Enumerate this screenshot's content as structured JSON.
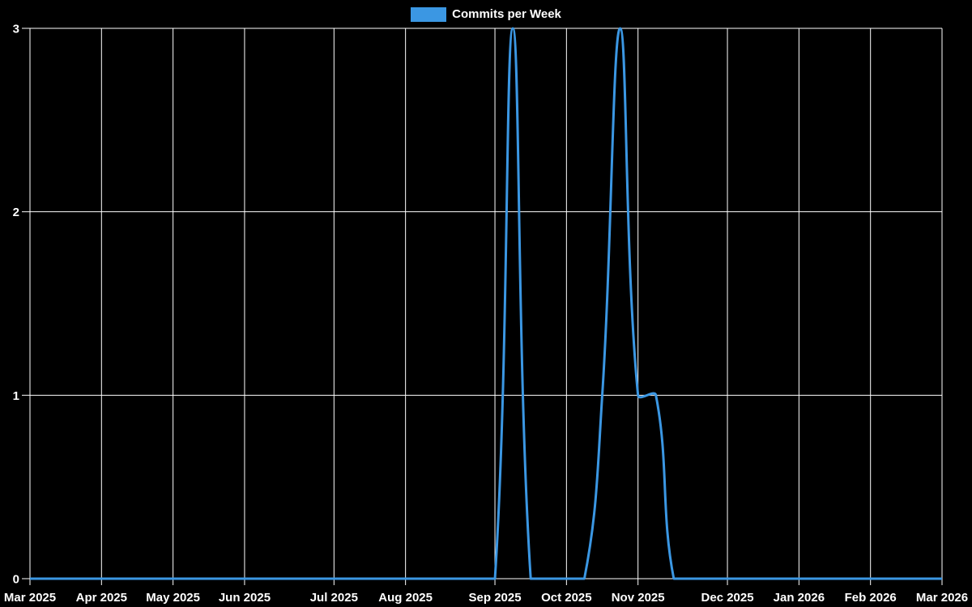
{
  "legend": {
    "label": "Commits per Week",
    "position": "top-center"
  },
  "colors": {
    "background": "#000000",
    "line": "#3b97e3",
    "grid": "#ffffff",
    "text": "#ffffff"
  },
  "chart_data": {
    "type": "line",
    "title": "",
    "series": [
      {
        "name": "Commits per Week",
        "values": [
          0,
          0,
          0,
          0,
          0,
          0,
          0,
          0,
          0,
          0,
          0,
          0,
          0,
          0,
          0,
          0,
          0,
          0,
          0,
          0,
          0,
          0,
          0,
          0,
          0,
          0,
          0,
          3,
          0,
          0,
          0,
          0,
          1,
          3,
          1,
          1,
          0,
          0,
          0,
          0,
          0,
          0,
          0,
          0,
          0,
          0,
          0,
          0,
          0,
          0,
          0,
          0
        ]
      }
    ],
    "x_unit": "week",
    "weeks_total": 52,
    "x_ticks": [
      {
        "week": 0,
        "label": "Mar 2025"
      },
      {
        "week": 4,
        "label": "Apr 2025"
      },
      {
        "week": 8,
        "label": "May 2025"
      },
      {
        "week": 12,
        "label": "Jun 2025"
      },
      {
        "week": 17,
        "label": "Jul 2025"
      },
      {
        "week": 21,
        "label": "Aug 2025"
      },
      {
        "week": 26,
        "label": "Sep 2025"
      },
      {
        "week": 30,
        "label": "Oct 2025"
      },
      {
        "week": 34,
        "label": "Nov 2025"
      },
      {
        "week": 39,
        "label": "Dec 2025"
      },
      {
        "week": 43,
        "label": "Jan 2026"
      },
      {
        "week": 47,
        "label": "Feb 2026"
      },
      {
        "week": 51,
        "label": "Mar 2026"
      }
    ],
    "y_ticks": [
      {
        "value": 0,
        "label": "0"
      },
      {
        "value": 1,
        "label": "1"
      },
      {
        "value": 2,
        "label": "2"
      },
      {
        "value": 3,
        "label": "3"
      }
    ],
    "ylim": [
      0,
      3
    ],
    "grid": true,
    "line_width": 3,
    "smoothing_tension": 0.4,
    "legend_position": "top-center"
  }
}
